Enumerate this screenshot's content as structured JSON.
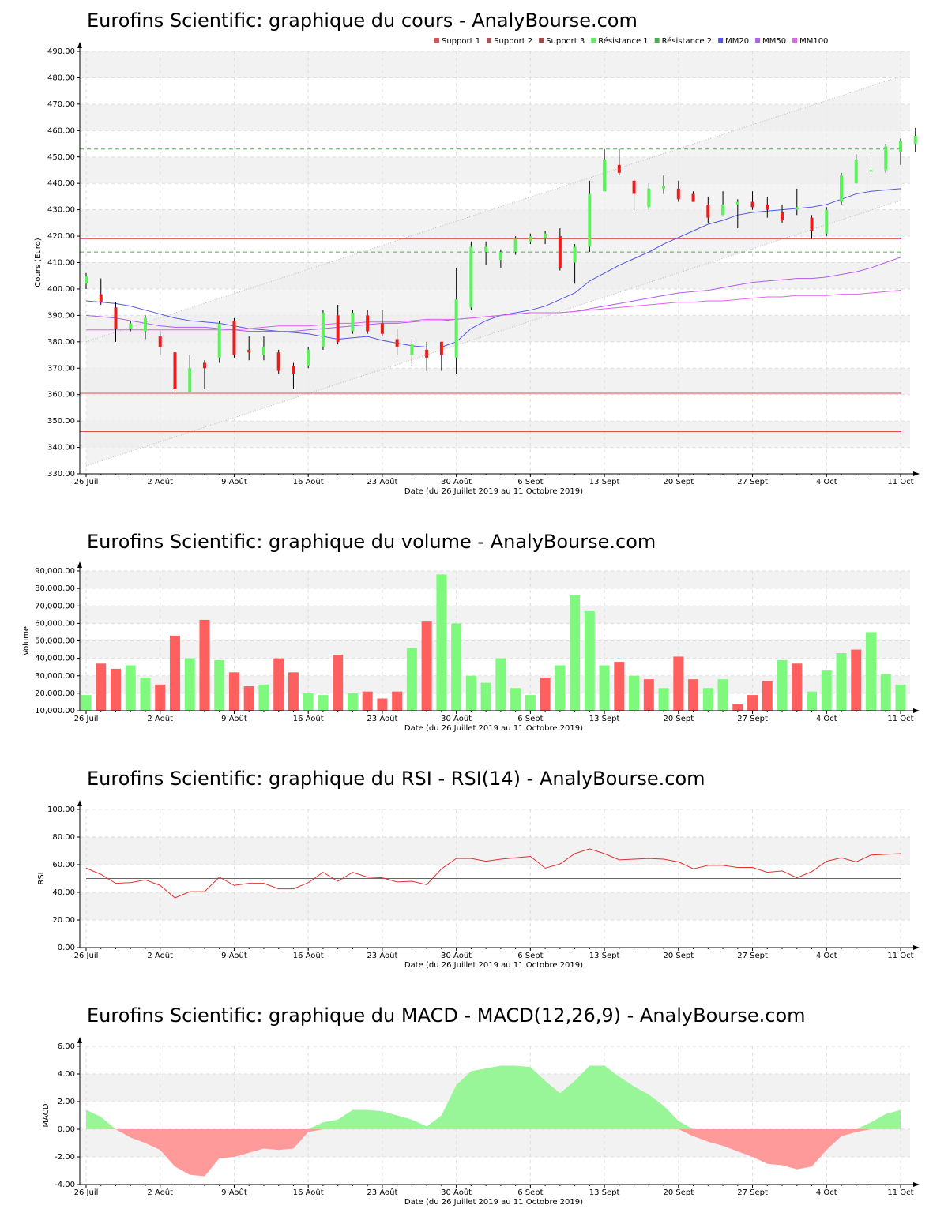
{
  "colors": {
    "up": "#5cf25c",
    "down": "#ee1c1c",
    "vol_up": "#7ef97e",
    "vol_down": "#ff5f5f",
    "support": "#d9534f",
    "resistance": "#4caf50",
    "mm20": "#5555ee",
    "mm50": "#b05cf0",
    "mm100": "#e060e8",
    "rsi_line": "#e03030",
    "macd_pos": "#98f598",
    "macd_neg": "#ff9a9a",
    "band_grey": "#f2f2f2"
  },
  "x_labels": [
    "26 Juil",
    "2 Août",
    "9 Août",
    "16 Août",
    "23 Août",
    "30 Août",
    "6 Sept",
    "13 Sept",
    "20 Sept",
    "27 Sept",
    "4 Oct",
    "11 Oct"
  ],
  "x_label_day_index": [
    0,
    5,
    10,
    15,
    20,
    25,
    30,
    35,
    40,
    45,
    50,
    55
  ],
  "chart_data": [
    {
      "type": "candlestick",
      "title": "Eurofins Scientific: graphique du cours - AnalyBourse.com",
      "ylabel": "Cours (Euro)",
      "xlabel": "Date (du 26 Juillet 2019 au 11 Octobre 2019)",
      "ylim": [
        330,
        490
      ],
      "yticks": [
        "330.00",
        "340.00",
        "350.00",
        "360.00",
        "370.00",
        "380.00",
        "390.00",
        "400.00",
        "410.00",
        "420.00",
        "430.00",
        "440.00",
        "450.00",
        "460.00",
        "470.00",
        "480.00",
        "490.00"
      ],
      "legend": [
        "Support 1",
        "Support 2",
        "Support 3",
        "Résistance 1",
        "Résistance 2",
        "MM20",
        "MM50",
        "MM100"
      ],
      "legend_position": "top-right",
      "supports": [
        419,
        360.5,
        346
      ],
      "resistances": [
        453,
        414
      ],
      "channel_upper": [
        380,
        480.5
      ],
      "channel_lower": [
        333,
        433.5
      ],
      "candles": [
        [
          402,
          405,
          406,
          400
        ],
        [
          398,
          395,
          404,
          394
        ],
        [
          393,
          385,
          395,
          380
        ],
        [
          385,
          387,
          388,
          384
        ],
        [
          384,
          389,
          390,
          381
        ],
        [
          382,
          378,
          384,
          375
        ],
        [
          376,
          362,
          376,
          361
        ],
        [
          361,
          370,
          375,
          361
        ],
        [
          372,
          370,
          373,
          362
        ],
        [
          374,
          387,
          388,
          372
        ],
        [
          388,
          375,
          389,
          374
        ],
        [
          377,
          376,
          382,
          373
        ],
        [
          375,
          378,
          382,
          373
        ],
        [
          376,
          369,
          377,
          368
        ],
        [
          371,
          368,
          372,
          362
        ],
        [
          371,
          377,
          378,
          370
        ],
        [
          378,
          391,
          392,
          377
        ],
        [
          390,
          380,
          394,
          379
        ],
        [
          384,
          391,
          392,
          383
        ],
        [
          390,
          384,
          392,
          383
        ],
        [
          387,
          383,
          392,
          382
        ],
        [
          381,
          378,
          385,
          375
        ],
        [
          375,
          379,
          381,
          371
        ],
        [
          377,
          374,
          380,
          369
        ],
        [
          380,
          375,
          380,
          369
        ],
        [
          374,
          396,
          408,
          368
        ],
        [
          393,
          416,
          418,
          392
        ],
        [
          414,
          416,
          418,
          409
        ],
        [
          411,
          414,
          415,
          408
        ],
        [
          414,
          419,
          420,
          413
        ],
        [
          418,
          420,
          421,
          417
        ],
        [
          419,
          421,
          422,
          417
        ],
        [
          420,
          408,
          423,
          407
        ],
        [
          410,
          416,
          417,
          402
        ],
        [
          416,
          436,
          441,
          414
        ],
        [
          437,
          449,
          453,
          437
        ],
        [
          447,
          444,
          453,
          443
        ],
        [
          441,
          436,
          442,
          429
        ],
        [
          431,
          438,
          440,
          430
        ],
        [
          438,
          439,
          443,
          436
        ],
        [
          438,
          434,
          441,
          433
        ],
        [
          436,
          433,
          437,
          433
        ],
        [
          432,
          427,
          435,
          425
        ],
        [
          428,
          432,
          437,
          428
        ],
        [
          432,
          433,
          434,
          423
        ],
        [
          433,
          431,
          437,
          430
        ],
        [
          432,
          430,
          435,
          427
        ],
        [
          429,
          426,
          432,
          425
        ],
        [
          430,
          431,
          438,
          428
        ],
        [
          427,
          422,
          428,
          419
        ],
        [
          421,
          430,
          431,
          420
        ],
        [
          433,
          443,
          444,
          432
        ],
        [
          440,
          449,
          451,
          440
        ],
        [
          445,
          445,
          450,
          437
        ],
        [
          445,
          454,
          455,
          444
        ],
        [
          452,
          456,
          457,
          447
        ],
        [
          455,
          458,
          461,
          452
        ]
      ],
      "mm20": [
        395.5,
        395,
        394.5,
        393.5,
        392,
        390.5,
        389,
        388,
        387.5,
        387,
        386,
        385,
        384.5,
        384,
        383.5,
        383,
        382,
        381,
        381.5,
        382,
        380.5,
        379.5,
        378.5,
        378,
        378,
        380,
        385,
        388,
        390,
        391,
        392,
        393.5,
        396,
        398.5,
        403,
        406,
        409,
        411.5,
        414,
        417,
        419.5,
        422,
        424.5,
        426,
        428,
        429,
        429.5,
        430,
        430.5,
        431,
        432,
        434,
        436,
        437,
        437.5,
        438
      ],
      "mm50": [
        390,
        389.5,
        389,
        388,
        387,
        386,
        385.5,
        385.5,
        385.5,
        385,
        384.5,
        384,
        384,
        384,
        384,
        384.5,
        385,
        385.5,
        386,
        386.5,
        387,
        387,
        387.5,
        388,
        388,
        388.5,
        389,
        389.5,
        390,
        390.5,
        391,
        391,
        391,
        391.5,
        392.5,
        393.5,
        394.5,
        395.5,
        396.5,
        397.5,
        398.5,
        399,
        399.5,
        400.5,
        401.5,
        402.5,
        403,
        403.5,
        404,
        404,
        404.5,
        405.5,
        406.5,
        408,
        410,
        412
      ],
      "mm100": [
        384.5,
        384.5,
        384.5,
        384.5,
        384.5,
        384.5,
        384.5,
        384.5,
        384.5,
        384.5,
        384.5,
        385,
        385.5,
        386,
        386,
        386,
        386.5,
        387,
        387,
        387.5,
        387.5,
        387.5,
        388,
        388.5,
        388.5,
        388.5,
        389,
        389.5,
        390,
        390.5,
        391,
        391,
        391,
        391.5,
        392,
        392.5,
        393,
        393.5,
        394,
        394.5,
        395,
        395,
        395.5,
        395.5,
        396,
        396.5,
        397,
        397,
        397.5,
        397.5,
        397.5,
        398,
        398,
        398.5,
        399,
        399.5
      ]
    },
    {
      "type": "bar",
      "title": "Eurofins Scientific: graphique du volume - AnalyBourse.com",
      "ylabel": "Volume",
      "xlabel": "Date (du 26 Juillet 2019 au 11 Octobre 2019)",
      "ylim": [
        10000,
        90000
      ],
      "yticks": [
        "10,000.00",
        "20,000.00",
        "30,000.00",
        "40,000.00",
        "50,000.00",
        "60,000.00",
        "70,000.00",
        "80,000.00",
        "90,000.00"
      ],
      "values": [
        19000,
        37000,
        34000,
        36000,
        29000,
        25000,
        53000,
        40000,
        62000,
        39000,
        32000,
        24000,
        25000,
        40000,
        32000,
        20000,
        19000,
        42000,
        20000,
        21000,
        17000,
        21000,
        46000,
        61000,
        88000,
        60000,
        30000,
        26000,
        40000,
        23000,
        19000,
        29000,
        36000,
        76000,
        67000,
        36000,
        38000,
        30000,
        28000,
        23000,
        41000,
        28000,
        23000,
        28000,
        14000,
        19000,
        27000,
        39000,
        37000,
        21000,
        33000,
        43000,
        45000,
        55000,
        31000,
        25000
      ],
      "up": [
        1,
        0,
        0,
        1,
        1,
        0,
        0,
        1,
        0,
        1,
        0,
        0,
        1,
        0,
        0,
        1,
        1,
        0,
        1,
        0,
        0,
        0,
        1,
        0,
        1,
        1,
        1,
        1,
        1,
        1,
        1,
        0,
        1,
        1,
        1,
        1,
        0,
        1,
        0,
        1,
        0,
        0,
        1,
        1,
        0,
        0,
        0,
        1,
        0,
        1,
        1,
        1,
        0,
        1,
        1,
        1
      ]
    },
    {
      "type": "line",
      "title": "Eurofins Scientific: graphique du RSI - RSI(14) - AnalyBourse.com",
      "ylabel": "RSI",
      "xlabel": "Date (du 26 Juillet 2019 au 11 Octobre 2019)",
      "ylim": [
        0,
        100
      ],
      "yticks": [
        "0.00",
        "20.00",
        "40.00",
        "60.00",
        "80.00",
        "100.00"
      ],
      "reference": 50,
      "values": [
        57.5,
        53,
        46.5,
        47,
        49,
        45,
        36,
        40.5,
        40.5,
        51,
        45,
        46.5,
        46.5,
        42.5,
        42.5,
        47,
        54.5,
        48,
        54.5,
        51,
        50.5,
        47.5,
        48,
        45.5,
        57,
        64.5,
        64.5,
        62.5,
        64,
        65,
        66,
        57.5,
        60.5,
        68,
        71.5,
        68,
        63.5,
        64,
        64.5,
        64,
        62,
        57,
        59.5,
        59.5,
        58,
        58,
        54.5,
        55.5,
        50.5,
        55,
        62.5,
        65,
        62,
        67,
        67.5,
        68
      ]
    },
    {
      "type": "area",
      "title": "Eurofins Scientific: graphique du MACD - MACD(12,26,9) - AnalyBourse.com",
      "ylabel": "MACD",
      "xlabel": "Date (du 26 Juillet 2019 au 11 Octobre 2019)",
      "ylim": [
        -4,
        6
      ],
      "yticks": [
        "-4.00",
        "-2.00",
        "0.00",
        "2.00",
        "4.00",
        "6.00"
      ],
      "values": [
        1.4,
        0.9,
        0,
        -0.6,
        -1,
        -1.5,
        -2.7,
        -3.3,
        -3.4,
        -2.1,
        -2,
        -1.7,
        -1.4,
        -1.5,
        -1.4,
        -0.2,
        0.5,
        0.7,
        1.4,
        1.4,
        1.3,
        1,
        0.7,
        0.2,
        1,
        3.2,
        4.2,
        4.4,
        4.6,
        4.6,
        4.5,
        3.5,
        2.6,
        3.5,
        4.6,
        4.6,
        3.8,
        3.1,
        2.5,
        1.7,
        0.6,
        -0.5,
        -0.9,
        -1.2,
        -1.6,
        -2,
        -2.5,
        -2.6,
        -2.9,
        -2.7,
        -1.5,
        -0.5,
        -0.2,
        0.5,
        1.1,
        1.4
      ]
    }
  ]
}
